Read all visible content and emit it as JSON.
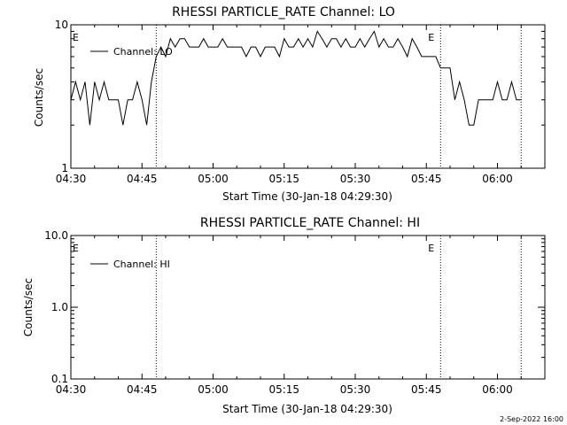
{
  "footer_text": "2-Sep-2022 16:00",
  "chart_data": [
    {
      "type": "line",
      "title": "RHESSI PARTICLE_RATE Channel: LO",
      "xlabel": "Start Time (30-Jan-18 04:29:30)",
      "ylabel": "Counts/sec",
      "y_scale": "log",
      "ylim": [
        1,
        10
      ],
      "xlim": [
        "04:30",
        "06:10"
      ],
      "y_ticks": [
        "1",
        "10"
      ],
      "x_ticks": [
        "04:30",
        "04:45",
        "05:00",
        "05:15",
        "05:30",
        "05:45",
        "06:00"
      ],
      "legend": {
        "position": "top-left",
        "entries": [
          "Channel: LO"
        ]
      },
      "event_markers": [
        {
          "label": "E",
          "time": "04:30"
        },
        {
          "label": "E",
          "time": "05:45"
        }
      ],
      "vertical_lines": [
        "04:48",
        "05:48",
        "06:05"
      ],
      "series": [
        {
          "name": "Channel: LO",
          "x": [
            "04:30",
            "04:31",
            "04:32",
            "04:33",
            "04:34",
            "04:35",
            "04:36",
            "04:37",
            "04:38",
            "04:39",
            "04:40",
            "04:41",
            "04:42",
            "04:43",
            "04:44",
            "04:45",
            "04:46",
            "04:47",
            "04:48",
            "04:49",
            "04:50",
            "04:51",
            "04:52",
            "04:53",
            "04:54",
            "04:55",
            "04:56",
            "04:57",
            "04:58",
            "04:59",
            "05:00",
            "05:01",
            "05:02",
            "05:03",
            "05:04",
            "05:05",
            "05:06",
            "05:07",
            "05:08",
            "05:09",
            "05:10",
            "05:11",
            "05:12",
            "05:13",
            "05:14",
            "05:15",
            "05:16",
            "05:17",
            "05:18",
            "05:19",
            "05:20",
            "05:21",
            "05:22",
            "05:23",
            "05:24",
            "05:25",
            "05:26",
            "05:27",
            "05:28",
            "05:29",
            "05:30",
            "05:31",
            "05:32",
            "05:33",
            "05:34",
            "05:35",
            "05:36",
            "05:37",
            "05:38",
            "05:39",
            "05:40",
            "05:41",
            "05:42",
            "05:43",
            "05:44",
            "05:45",
            "05:46",
            "05:47",
            "05:48",
            "05:49",
            "05:50",
            "05:51",
            "05:52",
            "05:53",
            "05:54",
            "05:55",
            "05:56",
            "05:57",
            "05:58",
            "05:59",
            "06:00",
            "06:01",
            "06:02",
            "06:03",
            "06:04",
            "06:05"
          ],
          "y": [
            3,
            4,
            3,
            4,
            2,
            4,
            3,
            4,
            3,
            3,
            3,
            2,
            3,
            3,
            4,
            3,
            2,
            4,
            6,
            7,
            6,
            8,
            7,
            8,
            8,
            7,
            7,
            7,
            8,
            7,
            7,
            7,
            8,
            7,
            7,
            7,
            7,
            6,
            7,
            7,
            6,
            7,
            7,
            7,
            6,
            8,
            7,
            7,
            8,
            7,
            8,
            7,
            9,
            8,
            7,
            8,
            8,
            7,
            8,
            7,
            7,
            8,
            7,
            8,
            9,
            7,
            8,
            7,
            7,
            8,
            7,
            6,
            8,
            7,
            6,
            6,
            6,
            6,
            5,
            5,
            5,
            3,
            4,
            3,
            2,
            2,
            3,
            3,
            3,
            3,
            4,
            3,
            3,
            4,
            3,
            3
          ]
        }
      ]
    },
    {
      "type": "line",
      "title": "RHESSI PARTICLE_RATE Channel: HI",
      "xlabel": "Start Time (30-Jan-18 04:29:30)",
      "ylabel": "Counts/sec",
      "y_scale": "log",
      "ylim": [
        0.1,
        10
      ],
      "xlim": [
        "04:30",
        "06:10"
      ],
      "y_ticks": [
        "0.1",
        "1.0",
        "10.0"
      ],
      "x_ticks": [
        "04:30",
        "04:45",
        "05:00",
        "05:15",
        "05:30",
        "05:45",
        "06:00"
      ],
      "legend": {
        "position": "top-left",
        "entries": [
          "Channel: HI"
        ]
      },
      "event_markers": [
        {
          "label": "E",
          "time": "04:30"
        },
        {
          "label": "E",
          "time": "05:45"
        }
      ],
      "vertical_lines": [
        "04:48",
        "05:48",
        "06:05"
      ],
      "series": [
        {
          "name": "Channel: HI",
          "x": [],
          "y": []
        }
      ]
    }
  ]
}
